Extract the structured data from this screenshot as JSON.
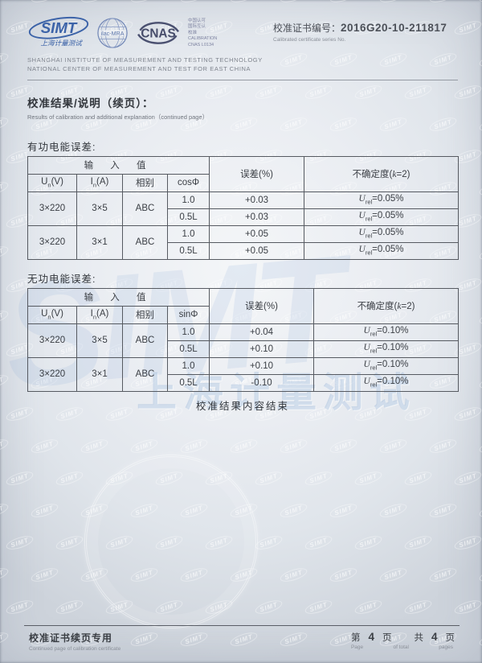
{
  "header": {
    "simt_logo": {
      "text": "SIMT",
      "sub": "上海计量测试"
    },
    "ilac_logo": {
      "text": "ilac-MRA"
    },
    "cnas_logo": {
      "text": "CNAS"
    },
    "cnas_side": [
      "中国认可",
      "国际互认",
      "校准",
      "CALIBRATION",
      "CNAS L0134"
    ],
    "org_line1": "SHANGHAI INSTITUTE OF MEASUREMENT AND TESTING TECHNOLOGY",
    "org_line2": "NATIONAL CENTER OF MEASUREMENT AND TEST FOR EAST CHINA",
    "cert_label": "校准证书编号：",
    "cert_value": "2016G20-10-211817",
    "cert_sub": "Calibrated certificate series No."
  },
  "section": {
    "title_zh": "校准结果/说明（续页）：",
    "title_en": "Results of calibration and additional explanation（continued page）"
  },
  "tables": [
    {
      "caption": "有功电能误差:",
      "header": {
        "input_group": "输 入 值",
        "un_base": "U",
        "un_sub": "n",
        "un_rest": "(V)",
        "in_base": "I",
        "in_sub": "n",
        "in_rest": "(A)",
        "phase": "相别",
        "angle": "cosΦ",
        "error": "误差(%)",
        "uncert_pre": "不确定度(",
        "uncert_k": "k",
        "uncert_post": "=2)"
      },
      "u_base": "U",
      "u_sub": "rel",
      "groups": [
        {
          "un": "3×220",
          "in": "3×5",
          "phase": "ABC",
          "rows": [
            {
              "angle": "1.0",
              "error": "+0.03",
              "u_val": "=0.05%"
            },
            {
              "angle": "0.5L",
              "error": "+0.03",
              "u_val": "=0.05%"
            }
          ]
        },
        {
          "un": "3×220",
          "in": "3×1",
          "phase": "ABC",
          "rows": [
            {
              "angle": "1.0",
              "error": "+0.05",
              "u_val": "=0.05%"
            },
            {
              "angle": "0.5L",
              "error": "+0.05",
              "u_val": "=0.05%"
            }
          ]
        }
      ]
    },
    {
      "caption": "无功电能误差:",
      "header": {
        "input_group": "输 入 值",
        "un_base": "U",
        "un_sub": "n",
        "un_rest": "(V)",
        "in_base": "I",
        "in_sub": "n",
        "in_rest": "(A)",
        "phase": "相别",
        "angle": "sinΦ",
        "error": "误差(%)",
        "uncert_pre": "不确定度(",
        "uncert_k": "k",
        "uncert_post": "=2)"
      },
      "u_base": "U",
      "u_sub": "rel",
      "groups": [
        {
          "un": "3×220",
          "in": "3×5",
          "phase": "ABC",
          "rows": [
            {
              "angle": "1.0",
              "error": "+0.04",
              "u_val": "=0.10%"
            },
            {
              "angle": "0.5L",
              "error": "+0.10",
              "u_val": "=0.10%"
            }
          ]
        },
        {
          "un": "3×220",
          "in": "3×1",
          "phase": "ABC",
          "rows": [
            {
              "angle": "1.0",
              "error": "+0.10",
              "u_val": "=0.10%"
            },
            {
              "angle": "0.5L",
              "error": "-0.10",
              "u_val": "=0.10%"
            }
          ]
        }
      ]
    }
  ],
  "end_note": "校准结果内容结束",
  "footer": {
    "left_zh": "校准证书续页专用",
    "left_en": "Continued page of calibration certificate",
    "page_label_1": "第",
    "page_num": "4",
    "page_label_2": "页",
    "total_label_1": "共",
    "total_num": "4",
    "total_label_2": "页",
    "page_en": "Page",
    "of_total_en": "of total",
    "pages_en": "pages"
  },
  "watermark": {
    "tile_text": "SIMT",
    "big_text": "SIMT",
    "cn_text": "上海计量测试"
  }
}
